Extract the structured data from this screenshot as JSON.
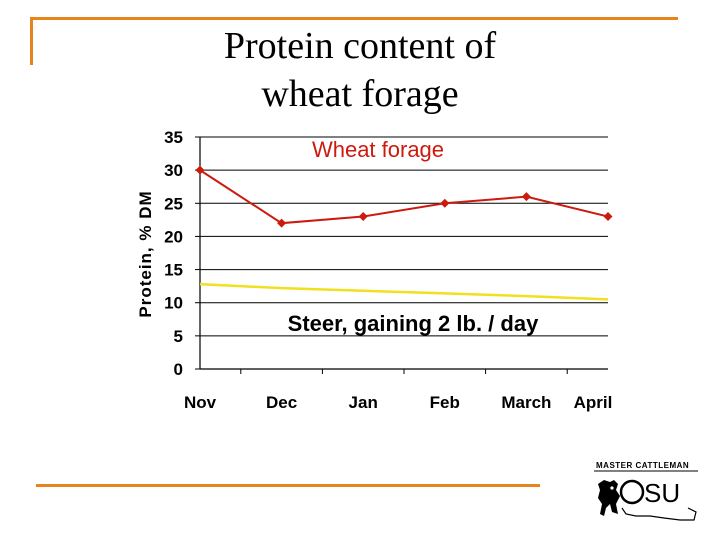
{
  "slide": {
    "title_line1": "Protein content of",
    "title_line2": "wheat forage"
  },
  "colors": {
    "frame": "#e8841c",
    "wheat_line": "#cc1a0e",
    "steer_line": "#f0e020"
  },
  "chart_data": {
    "type": "line",
    "categories": [
      "Nov",
      "Dec",
      "Jan",
      "Feb",
      "March",
      "April"
    ],
    "ylabel": "Protein, % DM",
    "ylim": [
      0,
      35
    ],
    "yticks": [
      0,
      5,
      10,
      15,
      20,
      25,
      30,
      35
    ],
    "grid": true,
    "series": [
      {
        "name": "Wheat forage",
        "values": [
          30,
          22,
          23,
          25,
          26,
          23
        ],
        "color": "#cc1a0e",
        "marker": "diamond"
      },
      {
        "name": "Steer, gaining 2 lb. / day",
        "values": [
          12.8,
          12.2,
          11.8,
          11.4,
          11.0,
          10.5
        ],
        "color": "#f0e020",
        "marker": "none"
      }
    ]
  },
  "logo": {
    "text_top": "MASTER CATTLEMAN",
    "text_main": "OSU",
    "icon": "cattle-silhouette-icon"
  }
}
